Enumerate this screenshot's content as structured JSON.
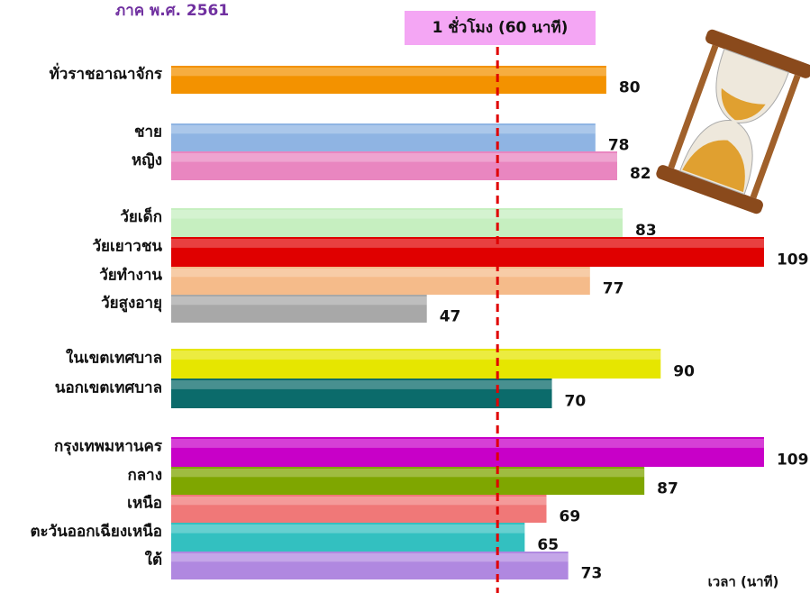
{
  "chart_data": {
    "type": "bar",
    "orientation": "horizontal",
    "title": "ภาค พ.ศ. 2561",
    "annotation": "1 ชั่วโมง (60 นาที)",
    "reference_value": 60,
    "x_label": "เวลา (นาที)",
    "categories": [
      "ทั่วราชอาณาจักร",
      "ชาย",
      "หญิง",
      "วัยเด็ก",
      "วัยเยาวชน",
      "วัยทำงาน",
      "วัยสูงอายุ",
      "ในเขตเทศบาล",
      "นอกเขตเทศบาล",
      "กรุงเทพมหานคร",
      "กลาง",
      "เหนือ",
      "ตะวันออกเฉียงเหนือ",
      "ใต้"
    ],
    "values": [
      80,
      78,
      82,
      83,
      109,
      77,
      47,
      90,
      70,
      109,
      87,
      69,
      65,
      73
    ],
    "colors": [
      "#f39200",
      "#8fb4e3",
      "#e986c0",
      "#c6efc0",
      "#e00000",
      "#f5bb8a",
      "#a8a8a8",
      "#e6e600",
      "#0b6b6b",
      "#c800c8",
      "#7fa600",
      "#f07878",
      "#33c0c0",
      "#b088e0"
    ],
    "xlim": [
      0,
      110
    ],
    "grid": false
  }
}
